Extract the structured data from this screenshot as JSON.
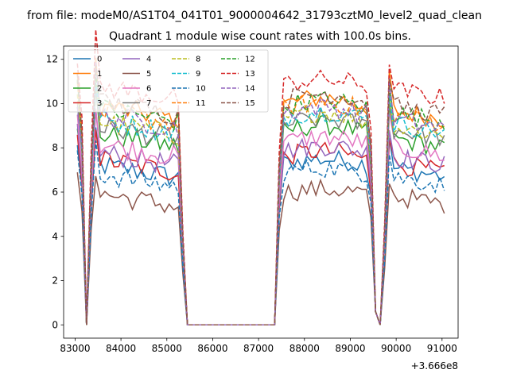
{
  "header": {
    "file_title": "from file: modeM0/AS1T04_041T01_9000004642_31793cztM0_level2_quad_clean"
  },
  "chart_data": {
    "type": "line",
    "title": "Quadrant 1 module wise count rates with 100.0s bins.",
    "xlabel": "",
    "ylabel": "",
    "x_offset_label": "+3.666e8",
    "xlim": [
      82750,
      91350
    ],
    "ylim": [
      -0.6,
      12.6
    ],
    "xticks": [
      83000,
      84000,
      85000,
      86000,
      87000,
      88000,
      89000,
      90000,
      91000
    ],
    "yticks": [
      0,
      2,
      4,
      6,
      8,
      10,
      12
    ],
    "grid": false,
    "legend": {
      "placement": "top-left",
      "columns": 4
    },
    "gaps_zero": [
      [
        85400,
        87350
      ],
      [
        89650,
        89650
      ]
    ],
    "series": [
      {
        "name": "0",
        "color": "#1f77b4",
        "dash": "solid",
        "base": 6.9,
        "peak": 7.6
      },
      {
        "name": "1",
        "color": "#ff7f0e",
        "dash": "solid",
        "base": 9.4,
        "peak": 10.4
      },
      {
        "name": "2",
        "color": "#2ca02c",
        "dash": "solid",
        "base": 8.1,
        "peak": 9.2
      },
      {
        "name": "3",
        "color": "#d62728",
        "dash": "solid",
        "base": 7.0,
        "peak": 8.0
      },
      {
        "name": "4",
        "color": "#9467bd",
        "dash": "solid",
        "base": 7.4,
        "peak": 8.2
      },
      {
        "name": "5",
        "color": "#8c564b",
        "dash": "solid",
        "base": 5.7,
        "peak": 6.2
      },
      {
        "name": "6",
        "color": "#e377c2",
        "dash": "solid",
        "base": 7.8,
        "peak": 8.6
      },
      {
        "name": "7",
        "color": "#7f7f7f",
        "dash": "solid",
        "base": 8.6,
        "peak": 9.4
      },
      {
        "name": "8",
        "color": "#bcbd22",
        "dash": "dashed",
        "base": 8.6,
        "peak": 9.8
      },
      {
        "name": "9",
        "color": "#17becf",
        "dash": "dashed",
        "base": 8.8,
        "peak": 9.8
      },
      {
        "name": "10",
        "color": "#1f77b4",
        "dash": "dashed",
        "base": 6.5,
        "peak": 7.2
      },
      {
        "name": "11",
        "color": "#ff7f0e",
        "dash": "dashed",
        "base": 9.2,
        "peak": 10.2
      },
      {
        "name": "12",
        "color": "#2ca02c",
        "dash": "dashed",
        "base": 9.3,
        "peak": 10.3
      },
      {
        "name": "13",
        "color": "#d62728",
        "dash": "dashed",
        "base": 10.4,
        "peak": 11.2
      },
      {
        "name": "14",
        "color": "#9467bd",
        "dash": "dashed",
        "base": 9.0,
        "peak": 10.0
      },
      {
        "name": "15",
        "color": "#8c564b",
        "dash": "dashed",
        "base": 9.6,
        "peak": 10.6
      }
    ]
  }
}
